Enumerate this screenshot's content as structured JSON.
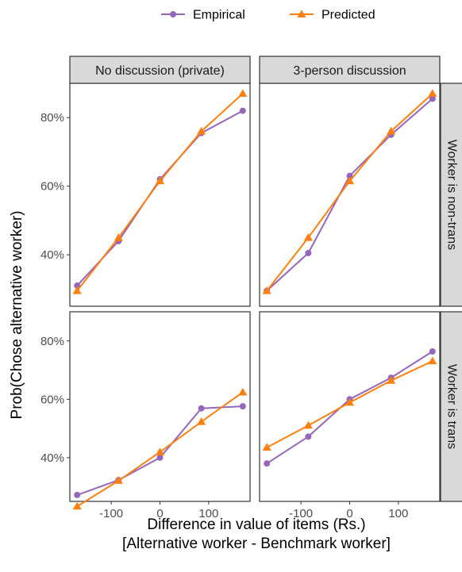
{
  "chart_data": {
    "type": "line",
    "xlabel_lines": [
      "Difference in value of items (Rs.)",
      "[Alternative worker - Benchmark worker]"
    ],
    "ylabel": "Prob(Chose alternative worker)",
    "x_ticks": [
      -100,
      0,
      100
    ],
    "x_tick_labels": [
      "-100",
      "0",
      "100"
    ],
    "xlim": [
      -185,
      185
    ],
    "y_ticks": [
      0.4,
      0.6,
      0.8
    ],
    "y_tick_labels": [
      "40%",
      "60%",
      "80%"
    ],
    "ylim": [
      0.25,
      0.9
    ],
    "grid": false,
    "legend_position": "top",
    "legend": [
      {
        "name": "Empirical",
        "color": "#9467bd",
        "marker": "circle"
      },
      {
        "name": "Predicted",
        "color": "#ff7f0e",
        "marker": "triangle"
      }
    ],
    "col_facets": [
      "No discussion (private)",
      "3-person discussion"
    ],
    "row_facets": [
      "Worker is non-trans",
      "Worker is trans"
    ],
    "x": [
      -170,
      -85,
      0,
      85,
      170
    ],
    "panels": [
      {
        "row": 0,
        "col": 0,
        "series": [
          {
            "name": "Empirical",
            "values": [
              0.31,
              0.44,
              0.62,
              0.755,
              0.82
            ]
          },
          {
            "name": "Predicted",
            "values": [
              0.295,
              0.45,
              0.615,
              0.76,
              0.87
            ]
          }
        ]
      },
      {
        "row": 0,
        "col": 1,
        "series": [
          {
            "name": "Empirical",
            "values": [
              0.295,
              0.405,
              0.63,
              0.75,
              0.855
            ]
          },
          {
            "name": "Predicted",
            "values": [
              0.295,
              0.45,
              0.615,
              0.76,
              0.87
            ]
          }
        ]
      },
      {
        "row": 1,
        "col": 0,
        "series": [
          {
            "name": "Empirical",
            "values": [
              0.272,
              0.323,
              0.4,
              0.569,
              0.576
            ]
          },
          {
            "name": "Predicted",
            "values": [
              0.233,
              0.321,
              0.419,
              0.523,
              0.624
            ]
          }
        ]
      },
      {
        "row": 1,
        "col": 1,
        "series": [
          {
            "name": "Empirical",
            "values": [
              0.38,
              0.472,
              0.6,
              0.674,
              0.764
            ]
          },
          {
            "name": "Predicted",
            "values": [
              0.435,
              0.51,
              0.589,
              0.664,
              0.731
            ]
          }
        ]
      }
    ]
  }
}
